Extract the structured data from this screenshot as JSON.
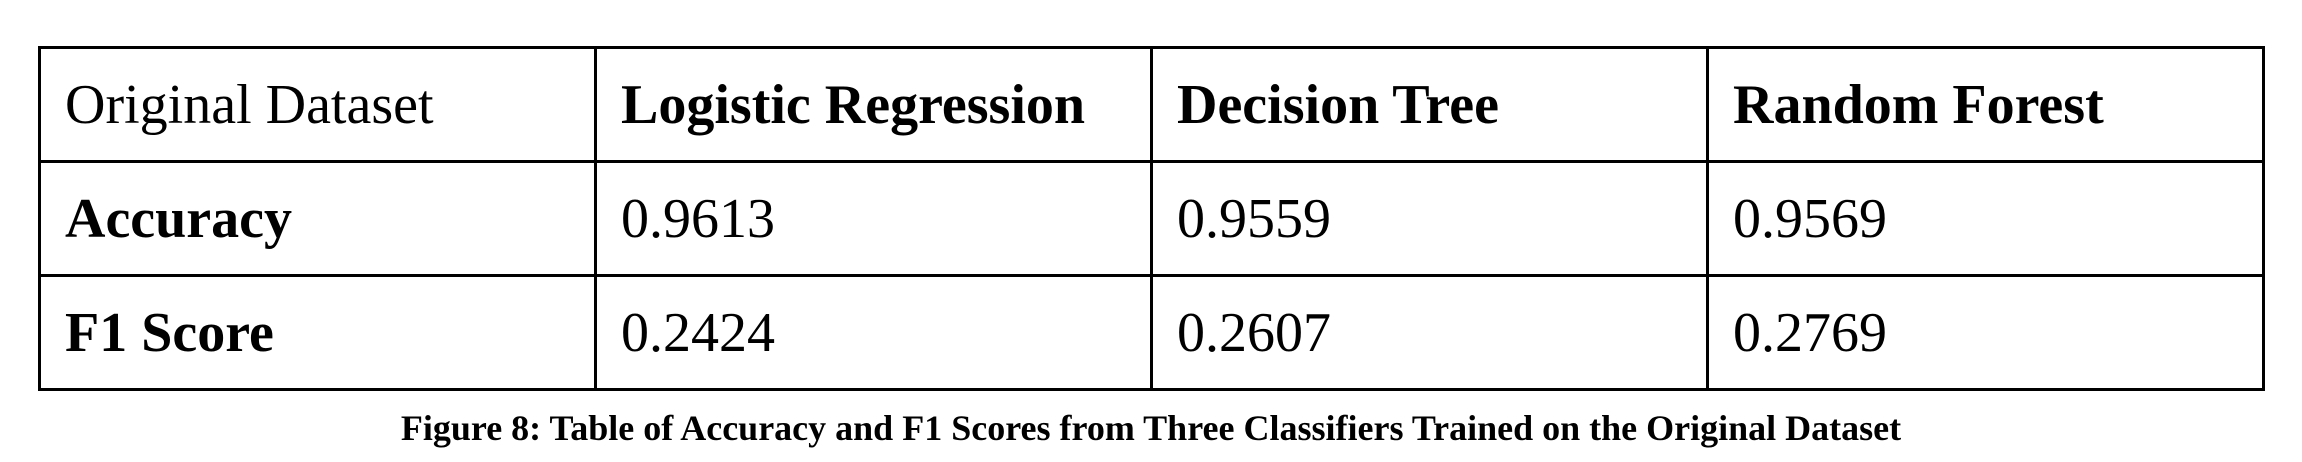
{
  "table": {
    "header": {
      "corner": "Original Dataset",
      "columns": [
        "Logistic Regression",
        "Decision Tree",
        "Random Forest"
      ]
    },
    "rows": [
      {
        "label": "Accuracy",
        "values": [
          "0.9613",
          "0.9559",
          "0.9569"
        ]
      },
      {
        "label": "F1 Score",
        "values": [
          "0.2424",
          "0.2607",
          "0.2769"
        ]
      }
    ]
  },
  "caption": "Figure 8: Table of Accuracy and F1 Scores from Three Classifiers Trained on the Original Dataset"
}
